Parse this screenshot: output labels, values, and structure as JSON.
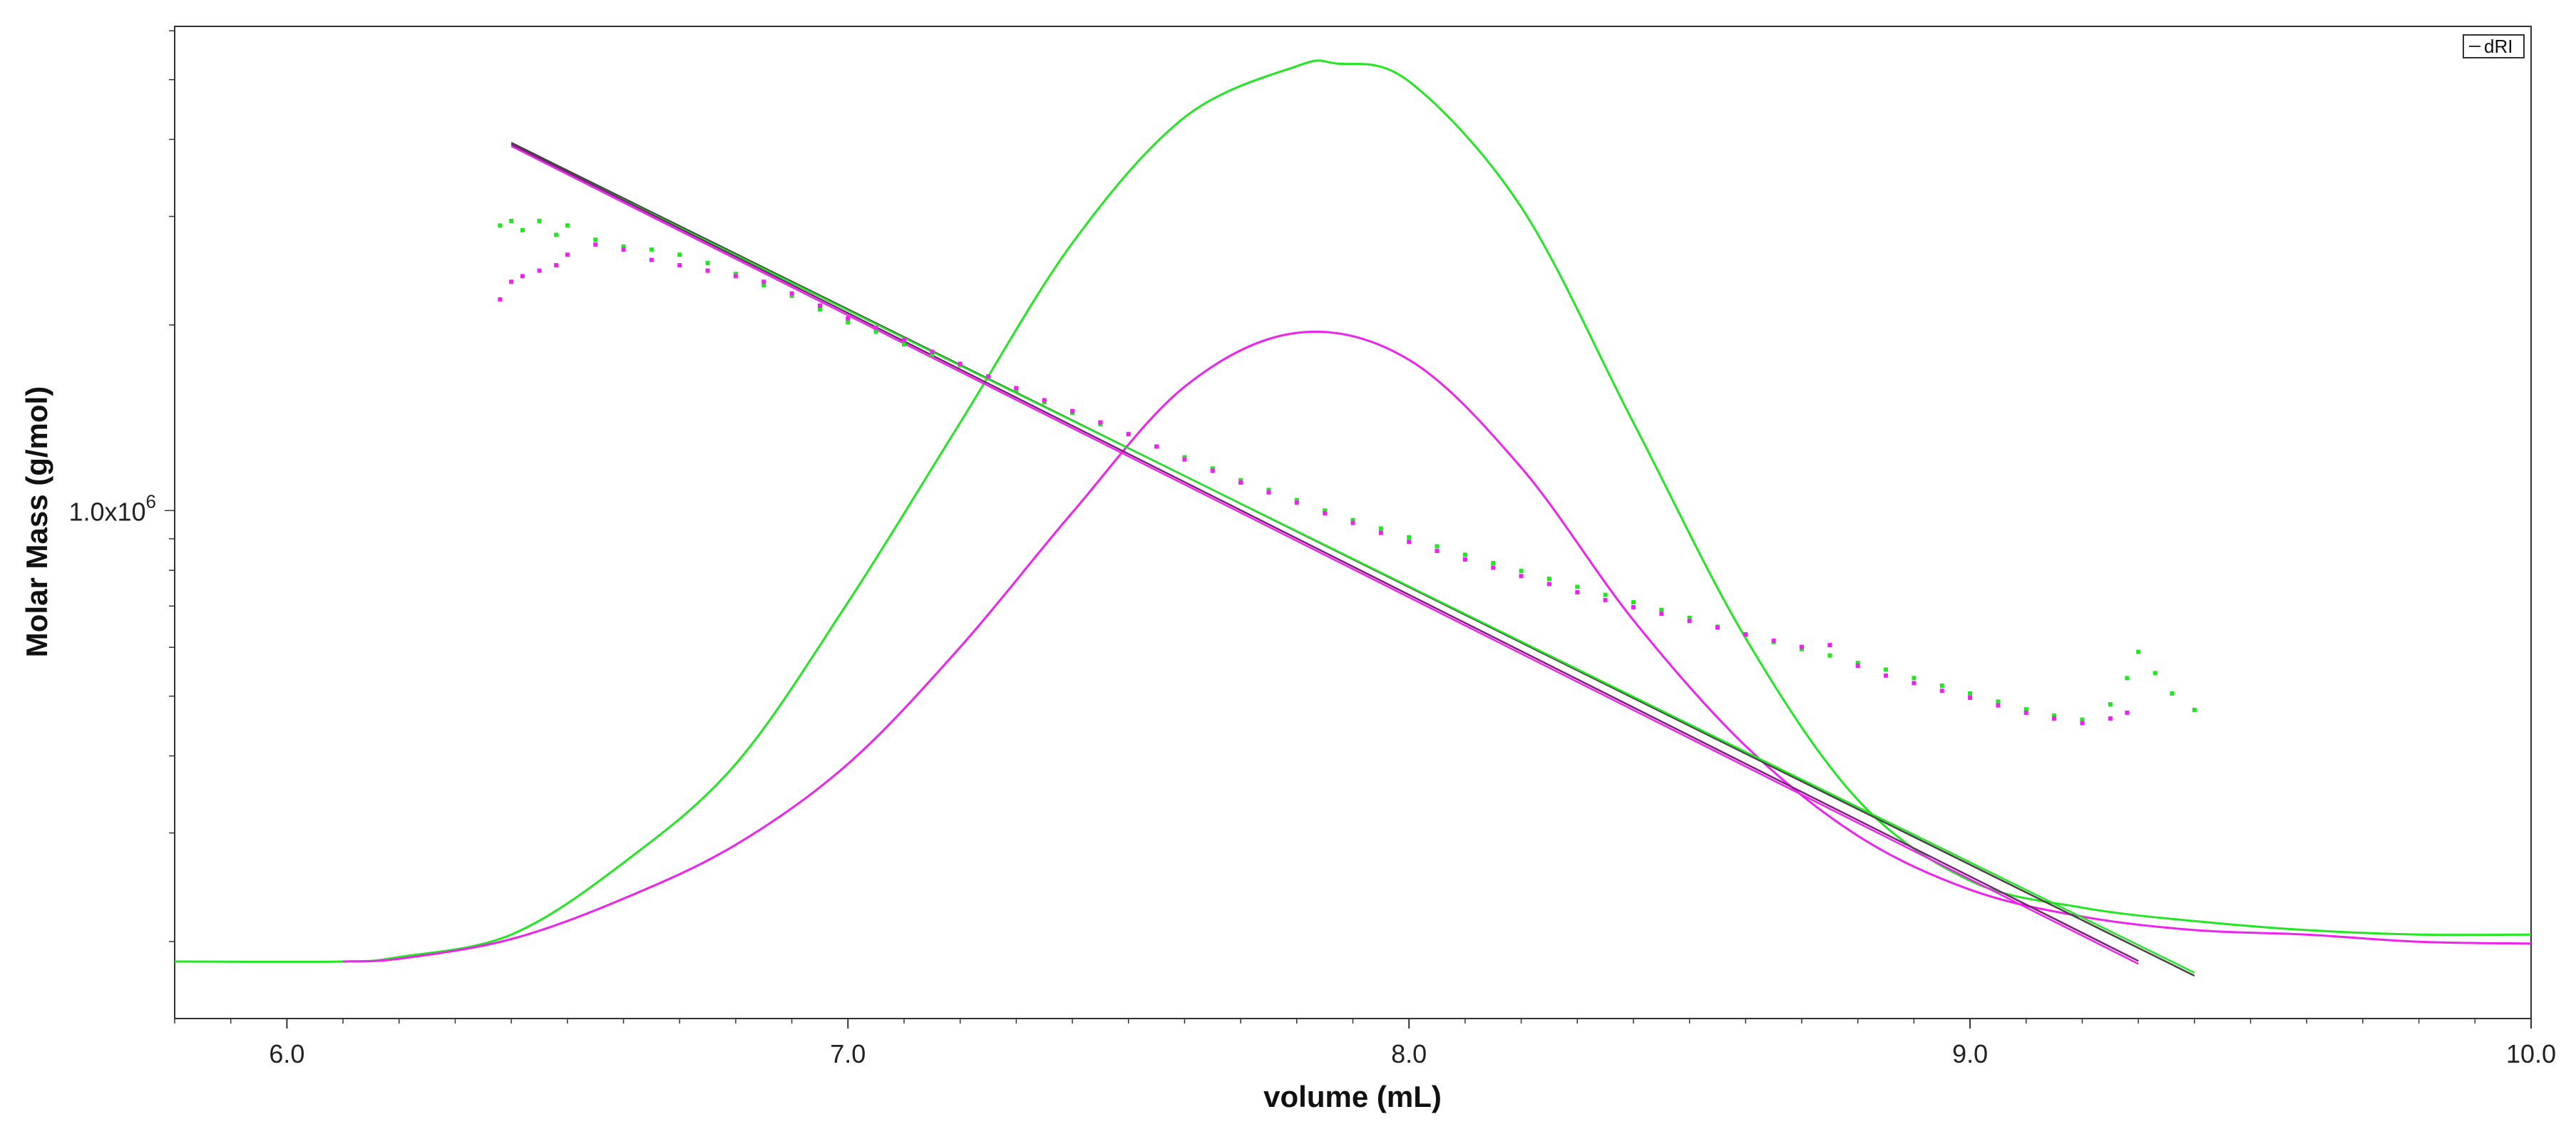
{
  "chart_data": {
    "type": "line",
    "xlabel": "volume (mL)",
    "ylabel": "Molar Mass (g/mol)",
    "xlim": [
      5.8,
      10.0
    ],
    "y_scale": "log",
    "x_ticks": [
      "6.0",
      "7.0",
      "8.0",
      "9.0",
      "10.0"
    ],
    "y_tick": {
      "mantissa": "1.0x10",
      "exponent": "6",
      "value": 1000000
    },
    "legend": {
      "label": "dRI",
      "placement": "top-right"
    },
    "colors": {
      "green": "#22e622",
      "magenta": "#ee22ee",
      "dark": "#444444",
      "purple": "#772277"
    },
    "peak_curves": [
      {
        "color": "green",
        "x": [
          5.8,
          6.1,
          6.2,
          6.4,
          6.6,
          6.8,
          7.0,
          7.2,
          7.4,
          7.6,
          7.8,
          7.87,
          8.0,
          8.2,
          8.4,
          8.6,
          8.8,
          9.0,
          9.2,
          9.4,
          9.6,
          9.8,
          10.0
        ],
        "y": [
          0.0,
          0.0,
          0.005,
          0.03,
          0.11,
          0.22,
          0.4,
          0.6,
          0.8,
          0.94,
          0.997,
          1.0,
          0.98,
          0.84,
          0.6,
          0.36,
          0.18,
          0.09,
          0.06,
          0.045,
          0.035,
          0.03,
          0.03
        ]
      },
      {
        "color": "magenta",
        "x": [
          6.1,
          6.2,
          6.4,
          6.6,
          6.8,
          7.0,
          7.2,
          7.4,
          7.6,
          7.8,
          8.0,
          8.2,
          8.4,
          8.6,
          8.8,
          9.0,
          9.2,
          9.4,
          9.6,
          9.8,
          10.0
        ],
        "y": [
          0.0,
          0.003,
          0.025,
          0.07,
          0.13,
          0.22,
          0.35,
          0.5,
          0.64,
          0.7,
          0.67,
          0.55,
          0.38,
          0.24,
          0.14,
          0.08,
          0.05,
          0.035,
          0.03,
          0.022,
          0.02
        ]
      }
    ],
    "fit_lines": [
      {
        "color": "dark",
        "x": [
          6.4,
          9.4
        ],
        "y": [
          3950000,
          176000
        ]
      },
      {
        "color": "green",
        "x": [
          6.4,
          9.4
        ],
        "y": [
          3920000,
          178000
        ]
      },
      {
        "color": "magenta",
        "x": [
          6.4,
          9.3
        ],
        "y": [
          3900000,
          184000
        ]
      },
      {
        "color": "purple",
        "x": [
          6.4,
          9.3
        ],
        "y": [
          3930000,
          186000
        ]
      }
    ],
    "scatter_series": [
      {
        "color": "green",
        "x": [
          6.38,
          6.4,
          6.42,
          6.45,
          6.48,
          6.5,
          6.55,
          6.6,
          6.65,
          6.7,
          6.75,
          6.8,
          6.85,
          6.9,
          6.95,
          7.0,
          7.05,
          7.1,
          7.15,
          7.2,
          7.25,
          7.3,
          7.35,
          7.4,
          7.45,
          7.5,
          7.55,
          7.6,
          7.65,
          7.7,
          7.75,
          7.8,
          7.85,
          7.9,
          7.95,
          8.0,
          8.05,
          8.1,
          8.15,
          8.2,
          8.25,
          8.3,
          8.35,
          8.4,
          8.45,
          8.5,
          8.55,
          8.6,
          8.65,
          8.7,
          8.75,
          8.8,
          8.85,
          8.9,
          8.95,
          9.0,
          9.05,
          9.1,
          9.15,
          9.2,
          9.25,
          9.28,
          9.3,
          9.33,
          9.36,
          9.4
        ],
        "y": [
          2900000,
          2950000,
          2850000,
          2950000,
          2800000,
          2900000,
          2750000,
          2680000,
          2650000,
          2600000,
          2520000,
          2420000,
          2320000,
          2230000,
          2120000,
          2020000,
          1950000,
          1860000,
          1790000,
          1720000,
          1640000,
          1570000,
          1500000,
          1440000,
          1380000,
          1330000,
          1270000,
          1220000,
          1170000,
          1120000,
          1080000,
          1040000,
          1000000,
          965000,
          935000,
          905000,
          875000,
          848000,
          822000,
          798000,
          775000,
          752000,
          730000,
          710000,
          690000,
          670000,
          648000,
          628000,
          612000,
          596000,
          582000,
          566000,
          552000,
          535000,
          520000,
          505000,
          490000,
          476000,
          465000,
          458000,
          485000,
          535000,
          590000,
          545000,
          505000,
          475000
        ]
      },
      {
        "color": "magenta",
        "x": [
          6.38,
          6.4,
          6.42,
          6.45,
          6.48,
          6.5,
          6.55,
          6.6,
          6.65,
          6.7,
          6.75,
          6.8,
          6.85,
          6.9,
          6.95,
          7.0,
          7.05,
          7.1,
          7.15,
          7.2,
          7.25,
          7.3,
          7.35,
          7.4,
          7.45,
          7.5,
          7.55,
          7.6,
          7.65,
          7.7,
          7.75,
          7.8,
          7.85,
          7.9,
          7.95,
          8.0,
          8.05,
          8.1,
          8.15,
          8.2,
          8.25,
          8.3,
          8.35,
          8.4,
          8.45,
          8.5,
          8.55,
          8.6,
          8.65,
          8.7,
          8.75,
          8.8,
          8.85,
          8.9,
          8.95,
          9.0,
          9.05,
          9.1,
          9.15,
          9.2,
          9.25,
          9.28
        ],
        "y": [
          2200000,
          2350000,
          2400000,
          2450000,
          2500000,
          2600000,
          2700000,
          2650000,
          2550000,
          2500000,
          2450000,
          2400000,
          2350000,
          2250000,
          2150000,
          2050000,
          1980000,
          1890000,
          1810000,
          1730000,
          1650000,
          1580000,
          1510000,
          1450000,
          1390000,
          1330000,
          1270000,
          1210000,
          1160000,
          1110000,
          1070000,
          1030000,
          990000,
          955000,
          920000,
          890000,
          860000,
          833000,
          808000,
          783000,
          760000,
          737000,
          716000,
          697000,
          680000,
          662000,
          646000,
          630000,
          615000,
          601000,
          605000,
          560000,
          540000,
          525000,
          510000,
          497000,
          483000,
          470000,
          460000,
          452000,
          460000,
          470000
        ]
      }
    ]
  }
}
